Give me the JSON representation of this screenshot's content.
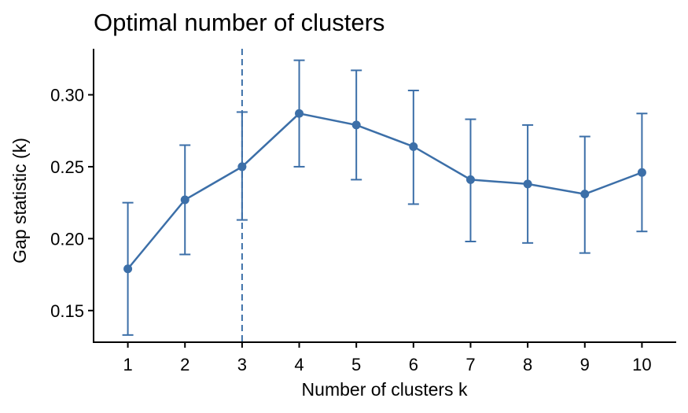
{
  "chart_data": {
    "type": "line",
    "title": "Optimal number of clusters",
    "xlabel": "Number of clusters k",
    "ylabel": "Gap statistic (k)",
    "x": [
      1,
      2,
      3,
      4,
      5,
      6,
      7,
      8,
      9,
      10
    ],
    "x_tick_labels": [
      "1",
      "2",
      "3",
      "4",
      "5",
      "6",
      "7",
      "8",
      "9",
      "10"
    ],
    "y_ticks": [
      0.15,
      0.2,
      0.25,
      0.3
    ],
    "y_tick_labels": [
      "0.15",
      "0.20",
      "0.25",
      "0.30"
    ],
    "series": [
      {
        "values": [
          0.179,
          0.227,
          0.25,
          0.287,
          0.279,
          0.264,
          0.241,
          0.238,
          0.231,
          0.246
        ],
        "error_low": [
          0.133,
          0.189,
          0.213,
          0.25,
          0.241,
          0.224,
          0.198,
          0.197,
          0.19,
          0.205
        ],
        "error_high": [
          0.225,
          0.265,
          0.288,
          0.324,
          0.317,
          0.303,
          0.283,
          0.279,
          0.271,
          0.287
        ]
      }
    ],
    "vline_x": 3,
    "xlim": [
      0.4,
      10.6
    ],
    "ylim": [
      0.128,
      0.332
    ],
    "grid": false,
    "color": "#3C6FA8"
  }
}
